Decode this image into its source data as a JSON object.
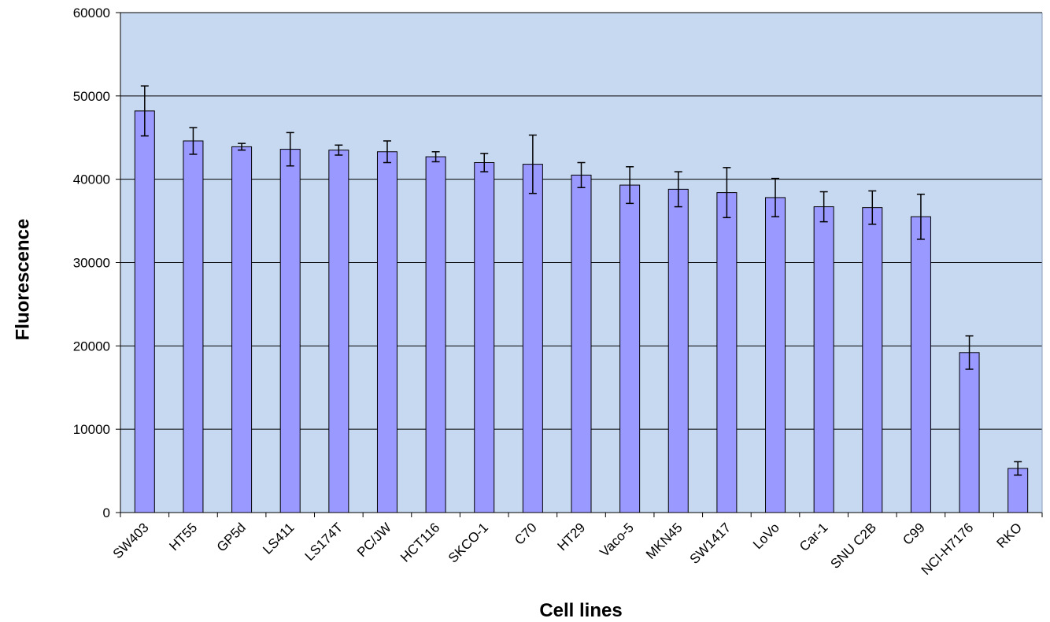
{
  "chart_data": {
    "type": "bar",
    "title": "",
    "xlabel": "Cell lines",
    "ylabel": "Fluorescence",
    "ylim": [
      0,
      60000
    ],
    "yticks": [
      0,
      10000,
      20000,
      30000,
      40000,
      50000,
      60000
    ],
    "grid": true,
    "categories": [
      "SW403",
      "HT55",
      "GP5d",
      "LS411",
      "LS174T",
      "PC/JW",
      "HCT116",
      "SKCO-1",
      "C70",
      "HT29",
      "Vaco-5",
      "MKN45",
      "SW1417",
      "LoVo",
      "Car-1",
      "SNU C2B",
      "C99",
      "NCI-H7176",
      "RKO"
    ],
    "series": [
      {
        "values": [
          48200,
          44600,
          43900,
          43600,
          43500,
          43300,
          42700,
          42000,
          41800,
          40500,
          39300,
          38800,
          38400,
          37800,
          36700,
          36600,
          35500,
          19200,
          5300
        ],
        "errors": [
          3000,
          1600,
          400,
          2000,
          600,
          1300,
          600,
          1100,
          3500,
          1500,
          2200,
          2100,
          3000,
          2300,
          1800,
          2000,
          2700,
          2000,
          800
        ]
      }
    ],
    "colors": {
      "plot_background": "#c7d9f1",
      "bar_fill": "#9999ff",
      "bar_stroke": "#000000",
      "gridline": "#000000"
    }
  }
}
